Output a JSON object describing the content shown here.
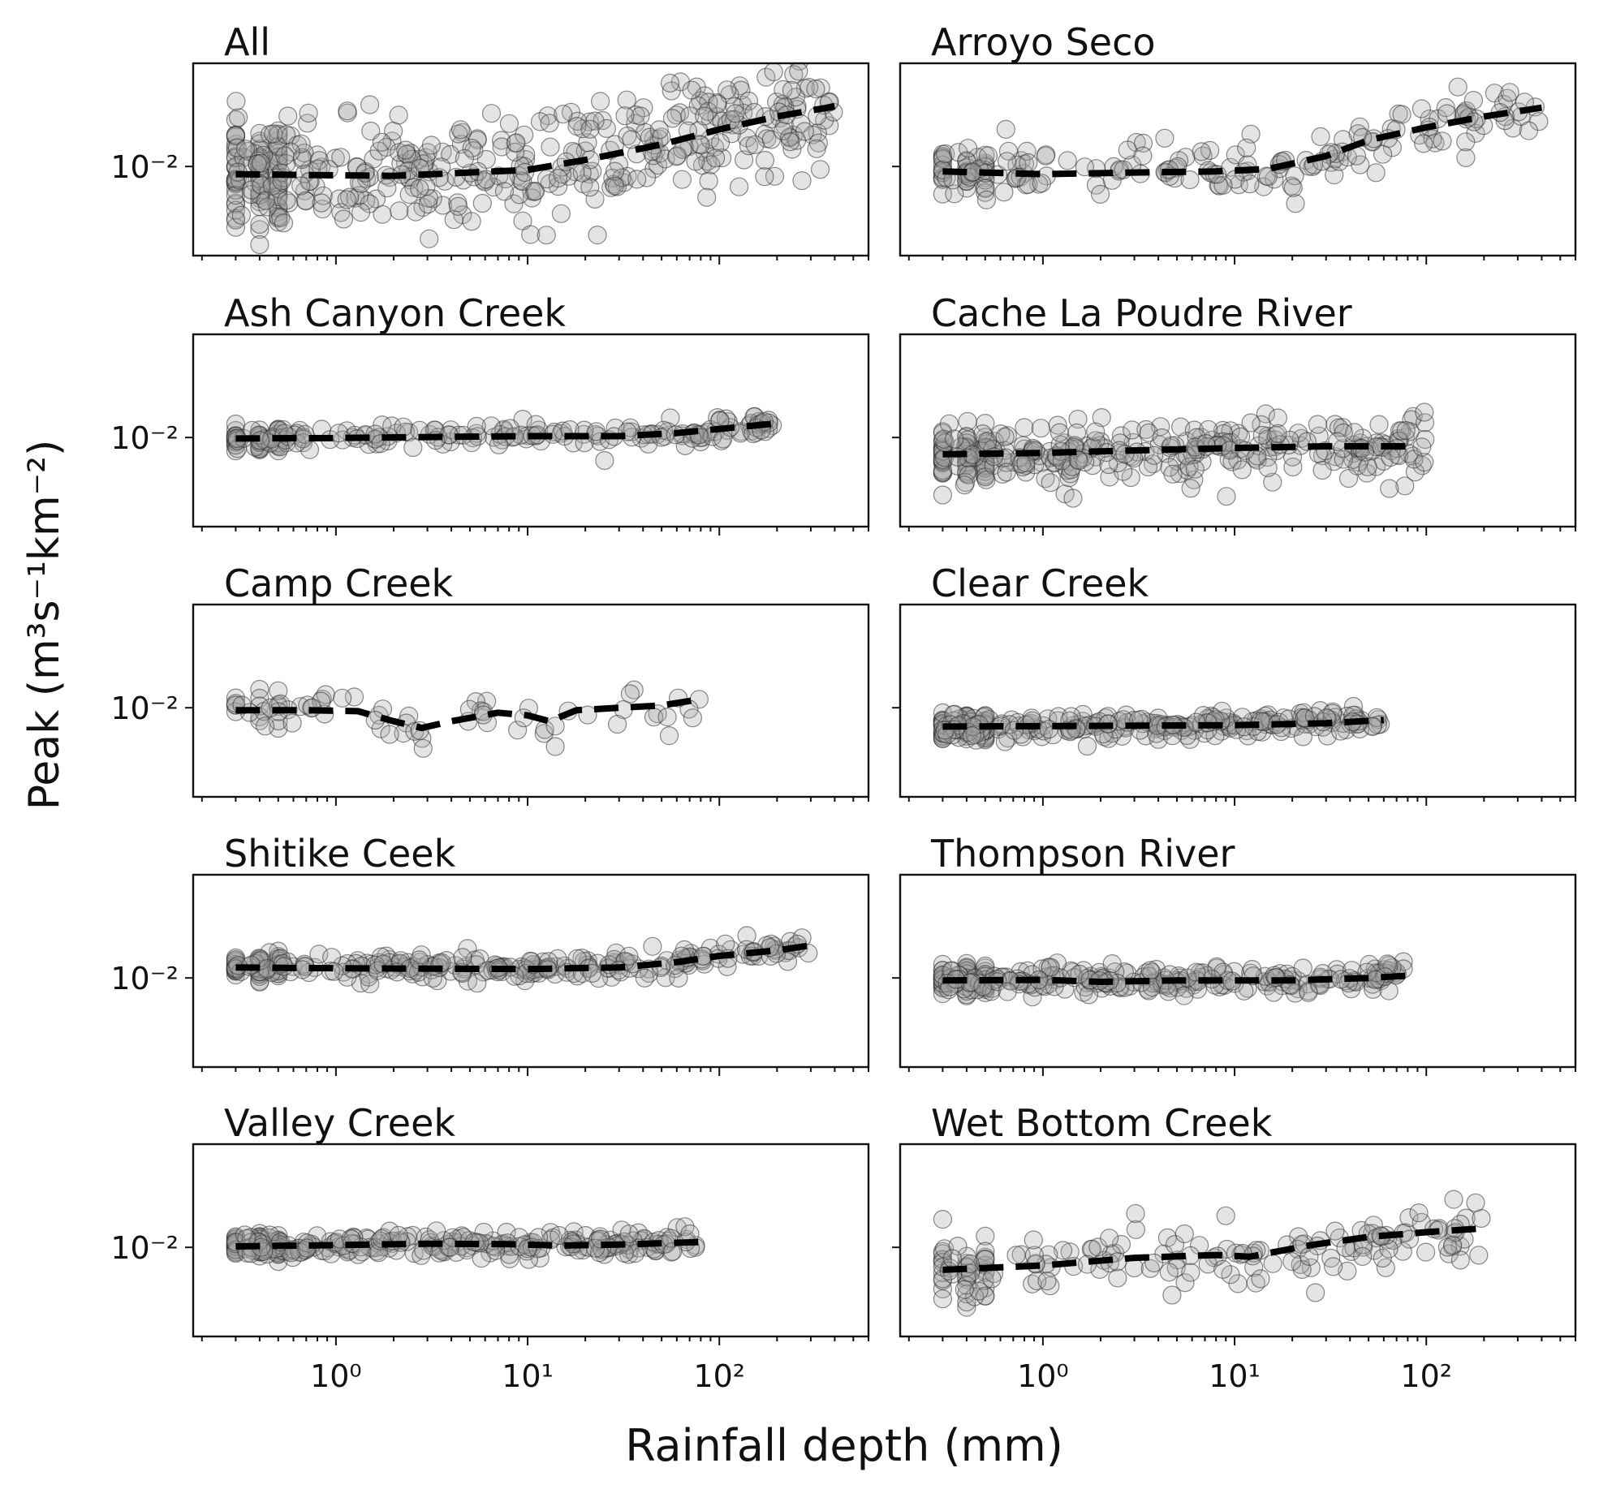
{
  "chart_data": {
    "type": "scatter",
    "ylabel": "Peak (m³s⁻¹km⁻²)",
    "xlabel": "Rainfall depth (mm)",
    "x_scale": "log",
    "y_scale": "log",
    "xlim": [
      0.18,
      600
    ],
    "ylim": [
      0.0015,
      0.09
    ],
    "x_tick_labels": [
      "10⁰",
      "10¹",
      "10²"
    ],
    "x_tick_values": [
      1,
      10,
      100
    ],
    "y_tick_label": "10⁻²",
    "y_tick_value": 0.01,
    "grid": false,
    "layout": "5 rows × 2 columns",
    "panels": [
      {
        "title": "All",
        "x_range": [
          0.3,
          400
        ],
        "n_points": 480,
        "y_spread": 0.75,
        "trend": [
          [
            0.3,
            0.0085
          ],
          [
            1,
            0.0083
          ],
          [
            2,
            0.0082
          ],
          [
            5,
            0.0088
          ],
          [
            10,
            0.0093
          ],
          [
            20,
            0.0115
          ],
          [
            50,
            0.016
          ],
          [
            100,
            0.022
          ],
          [
            200,
            0.029
          ],
          [
            400,
            0.036
          ]
        ]
      },
      {
        "title": "Arroyo Seco",
        "x_range": [
          0.3,
          400
        ],
        "n_points": 210,
        "y_spread": 0.4,
        "trend": [
          [
            0.3,
            0.009
          ],
          [
            1,
            0.0085
          ],
          [
            3,
            0.0088
          ],
          [
            8,
            0.009
          ],
          [
            15,
            0.0095
          ],
          [
            30,
            0.0125
          ],
          [
            50,
            0.0175
          ],
          [
            100,
            0.023
          ],
          [
            200,
            0.029
          ],
          [
            400,
            0.035
          ]
        ]
      },
      {
        "title": "Ash Canyon Creek",
        "x_range": [
          0.3,
          200
        ],
        "n_points": 220,
        "y_spread": 0.17,
        "trend": [
          [
            0.3,
            0.0098
          ],
          [
            1,
            0.0099
          ],
          [
            3,
            0.0101
          ],
          [
            10,
            0.0103
          ],
          [
            30,
            0.0103
          ],
          [
            60,
            0.011
          ],
          [
            100,
            0.012
          ],
          [
            200,
            0.0135
          ]
        ]
      },
      {
        "title": "Cache La Poudre River",
        "x_range": [
          0.3,
          100
        ],
        "n_points": 360,
        "y_spread": 0.4,
        "trend": [
          [
            0.3,
            0.007
          ],
          [
            1,
            0.0072
          ],
          [
            3,
            0.0076
          ],
          [
            10,
            0.008
          ],
          [
            30,
            0.0083
          ],
          [
            90,
            0.0083
          ]
        ]
      },
      {
        "title": "Camp Creek",
        "x_range": [
          0.3,
          80
        ],
        "n_points": 75,
        "y_spread": 0.35,
        "trend": [
          [
            0.3,
            0.0095
          ],
          [
            0.7,
            0.0095
          ],
          [
            1.3,
            0.0093
          ],
          [
            2,
            0.0075
          ],
          [
            2.8,
            0.0065
          ],
          [
            4,
            0.0075
          ],
          [
            7,
            0.009
          ],
          [
            10,
            0.0085
          ],
          [
            13,
            0.0075
          ],
          [
            18,
            0.0095
          ],
          [
            30,
            0.01
          ],
          [
            50,
            0.0105
          ],
          [
            80,
            0.012
          ]
        ]
      },
      {
        "title": "Clear Creek",
        "x_range": [
          0.3,
          60
        ],
        "n_points": 300,
        "y_spread": 0.18,
        "trend": [
          [
            0.3,
            0.0067
          ],
          [
            2,
            0.0068
          ],
          [
            10,
            0.0069
          ],
          [
            30,
            0.0072
          ],
          [
            60,
            0.0077
          ]
        ]
      },
      {
        "title": "Shitike Ceek",
        "x_range": [
          0.3,
          300
        ],
        "n_points": 300,
        "y_spread": 0.17,
        "trend": [
          [
            0.3,
            0.0125
          ],
          [
            1,
            0.0123
          ],
          [
            3,
            0.0122
          ],
          [
            10,
            0.0121
          ],
          [
            30,
            0.0125
          ],
          [
            60,
            0.014
          ],
          [
            100,
            0.016
          ],
          [
            200,
            0.018
          ],
          [
            300,
            0.02
          ]
        ]
      },
      {
        "title": "Thompson River",
        "x_range": [
          0.3,
          80
        ],
        "n_points": 300,
        "y_spread": 0.18,
        "trend": [
          [
            0.3,
            0.0095
          ],
          [
            1,
            0.0096
          ],
          [
            2,
            0.0092
          ],
          [
            5,
            0.0095
          ],
          [
            20,
            0.0095
          ],
          [
            50,
            0.01
          ],
          [
            80,
            0.0105
          ]
        ]
      },
      {
        "title": "Valley Creek",
        "x_range": [
          0.3,
          80
        ],
        "n_points": 300,
        "y_spread": 0.17,
        "trend": [
          [
            0.3,
            0.0102
          ],
          [
            1,
            0.0105
          ],
          [
            3,
            0.0108
          ],
          [
            8,
            0.0107
          ],
          [
            15,
            0.0104
          ],
          [
            30,
            0.0106
          ],
          [
            80,
            0.0112
          ]
        ]
      },
      {
        "title": "Wet Bottom Creek",
        "x_range": [
          0.3,
          200
        ],
        "n_points": 180,
        "y_spread": 0.5,
        "trend": [
          [
            0.3,
            0.0062
          ],
          [
            1,
            0.0068
          ],
          [
            3,
            0.008
          ],
          [
            8,
            0.0085
          ],
          [
            12,
            0.0082
          ],
          [
            25,
            0.0105
          ],
          [
            50,
            0.0125
          ],
          [
            100,
            0.0138
          ],
          [
            200,
            0.015
          ]
        ]
      }
    ]
  }
}
